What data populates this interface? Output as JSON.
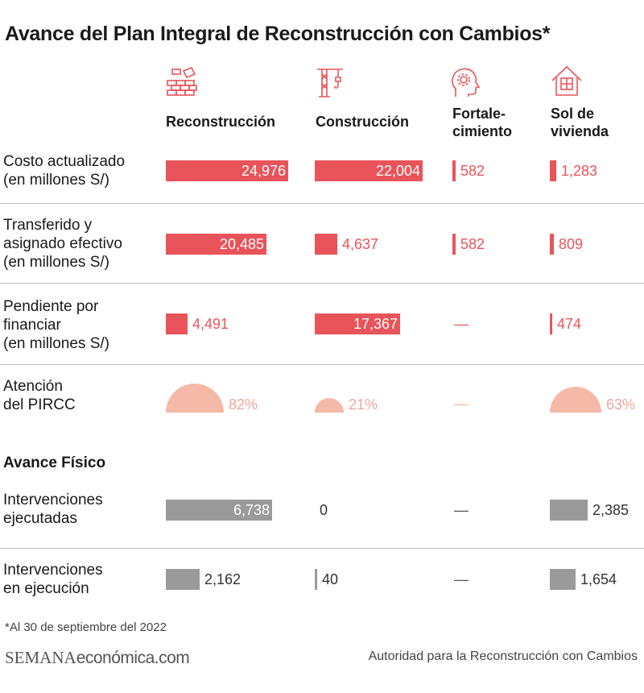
{
  "title": "Avance del Plan Integral de Reconstrucción con Cambios*",
  "columns": [
    {
      "label_line1": "Reconstrucción",
      "label_line2": "",
      "icon": "bricks-icon"
    },
    {
      "label_line1": "Construcción",
      "label_line2": "",
      "icon": "crane-icon"
    },
    {
      "label_line1": "Fortale-",
      "label_line2": "cimiento",
      "icon": "head-gear-icon"
    },
    {
      "label_line1": "Sol de",
      "label_line2": "vivienda",
      "icon": "house-icon"
    }
  ],
  "rows": {
    "costo": {
      "line1": "Costo actualizado",
      "line2": "(en millones S/)"
    },
    "transferido": {
      "line1": "Transferido y",
      "line2": "asignado efectivo",
      "line3": "(en millones S/)"
    },
    "pendiente": {
      "line1": "Pendiente por",
      "line2": "financiar",
      "line3": "(en millones S/)"
    },
    "atencion": {
      "line1": "Atención",
      "line2": "del PIRCC"
    },
    "ejecutadas": {
      "line1": "Intervenciones",
      "line2": "ejecutadas"
    },
    "ejecucion": {
      "line1": "Intervenciones",
      "line2": "en ejecución"
    }
  },
  "section_label": "Avance Físico",
  "dash": "—",
  "footnote": "*Al 30 de septiembre del 2022",
  "brand": {
    "part1": "SEMANA",
    "part2": "económica.com"
  },
  "source": "Autoridad para la Reconstrucción con Cambios",
  "colors": {
    "red": "#e8545a",
    "pink": "#f5b9a8",
    "gray": "#9a9a9a"
  },
  "chart_data": [
    {
      "type": "bar",
      "series": [
        {
          "name": "Costo actualizado",
          "categories": [
            "Reconstrucción",
            "Construcción",
            "Fortale-cimiento",
            "Sol de vivienda"
          ],
          "values": [
            24976,
            22004,
            582,
            1283
          ],
          "labels": [
            "24,976",
            "22,004",
            "582",
            "1,283"
          ]
        }
      ]
    },
    {
      "type": "bar",
      "series": [
        {
          "name": "Transferido y asignado efectivo",
          "categories": [
            "Reconstrucción",
            "Construcción",
            "Fortale-cimiento",
            "Sol de vivienda"
          ],
          "values": [
            20485,
            4637,
            582,
            809
          ],
          "labels": [
            "20,485",
            "4,637",
            "582",
            "809"
          ]
        }
      ]
    },
    {
      "type": "bar",
      "series": [
        {
          "name": "Pendiente por financiar",
          "categories": [
            "Reconstrucción",
            "Construcción",
            "Fortale-cimiento",
            "Sol de vivienda"
          ],
          "values": [
            4491,
            17367,
            null,
            474
          ],
          "labels": [
            "4,491",
            "17,367",
            "—",
            "474"
          ]
        }
      ]
    },
    {
      "type": "pie",
      "series": [
        {
          "name": "Atención del PIRCC",
          "categories": [
            "Reconstrucción",
            "Construcción",
            "Fortale-cimiento",
            "Sol de vivienda"
          ],
          "values": [
            82,
            21,
            null,
            63
          ],
          "labels": [
            "82%",
            "21%",
            "—",
            "63%"
          ]
        }
      ]
    },
    {
      "type": "bar",
      "series": [
        {
          "name": "Intervenciones ejecutadas",
          "categories": [
            "Reconstrucción",
            "Construcción",
            "Fortale-cimiento",
            "Sol de vivienda"
          ],
          "values": [
            6738,
            0,
            null,
            2385
          ],
          "labels": [
            "6,738",
            "0",
            "—",
            "2,385"
          ]
        }
      ]
    },
    {
      "type": "bar",
      "series": [
        {
          "name": "Intervenciones en ejecución",
          "categories": [
            "Reconstrucción",
            "Construcción",
            "Fortale-cimiento",
            "Sol de vivienda"
          ],
          "values": [
            2162,
            40,
            null,
            1654
          ],
          "labels": [
            "2,162",
            "40",
            "—",
            "1,654"
          ]
        }
      ]
    }
  ]
}
